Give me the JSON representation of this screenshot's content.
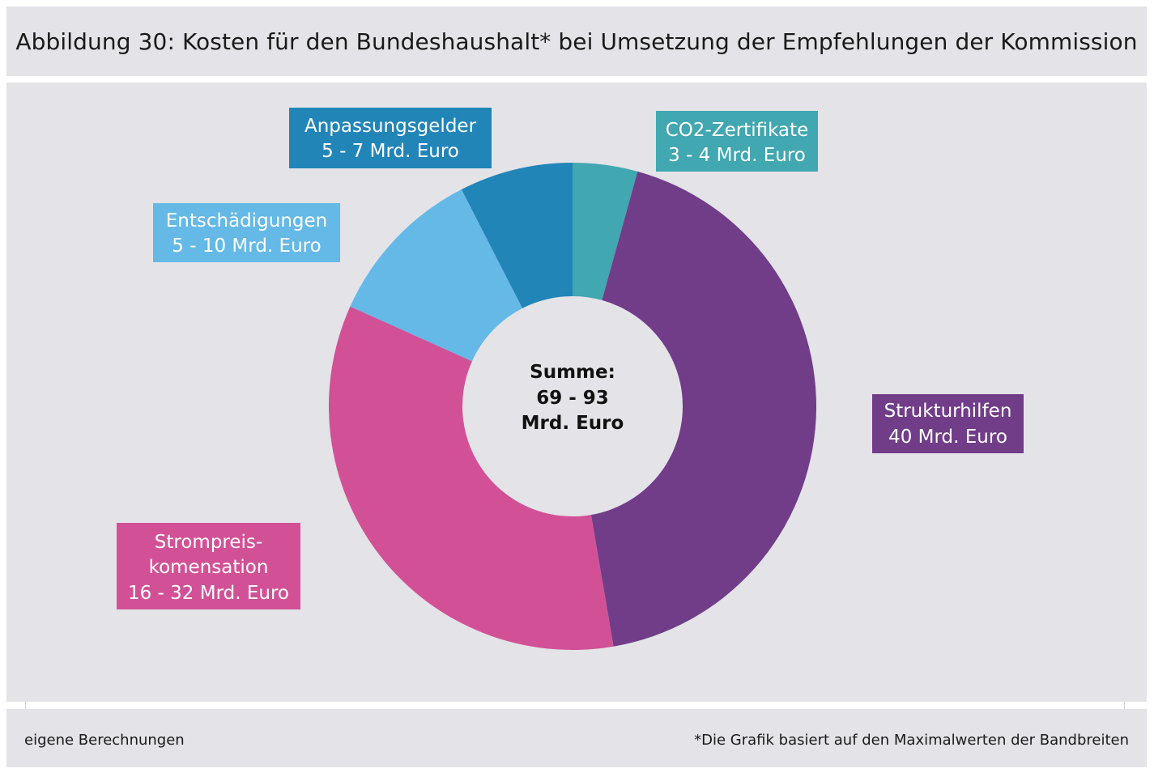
{
  "title": "Abbildung 30: Kosten für den Bundeshaushalt* bei Umsetzung der Empfehlungen der Kommission",
  "source_note": "eigene Berechnungen",
  "footnote": "*Die Grafik basiert auf den Maximalwerten der Bandbreiten",
  "chart_data": {
    "type": "pie",
    "variant": "donut",
    "unit": "Mrd. Euro",
    "center_label": [
      "Summe:",
      "69 - 93",
      "Mrd. Euro"
    ],
    "slices": [
      {
        "name": "CO2-Zertifikate",
        "range": "3 - 4 Mrd. Euro",
        "value": 4,
        "color": "#41a7b0",
        "label_lines": [
          "CO2-Zertifikate",
          "3 - 4 Mrd. Euro"
        ]
      },
      {
        "name": "Strukturhilfen",
        "range": "40 Mrd. Euro",
        "value": 40,
        "color": "#713d88",
        "label_lines": [
          "Strukturhilfen",
          "40 Mrd. Euro"
        ]
      },
      {
        "name": "Strompreiskomensation",
        "range": "16 - 32 Mrd. Euro",
        "value": 32,
        "color": "#d25196",
        "label_lines": [
          "Strompreis-",
          "komensation",
          "16 - 32 Mrd. Euro"
        ]
      },
      {
        "name": "Entschädigungen",
        "range": "5 - 10 Mrd. Euro",
        "value": 10,
        "color": "#64b9e6",
        "label_lines": [
          "Entschädigungen",
          "5 - 10 Mrd. Euro"
        ]
      },
      {
        "name": "Anpassungsgelder",
        "range": "5 - 7 Mrd. Euro",
        "value": 7,
        "color": "#2285b8",
        "label_lines": [
          "Anpassungsgelder",
          "5 - 7 Mrd. Euro"
        ]
      }
    ]
  }
}
